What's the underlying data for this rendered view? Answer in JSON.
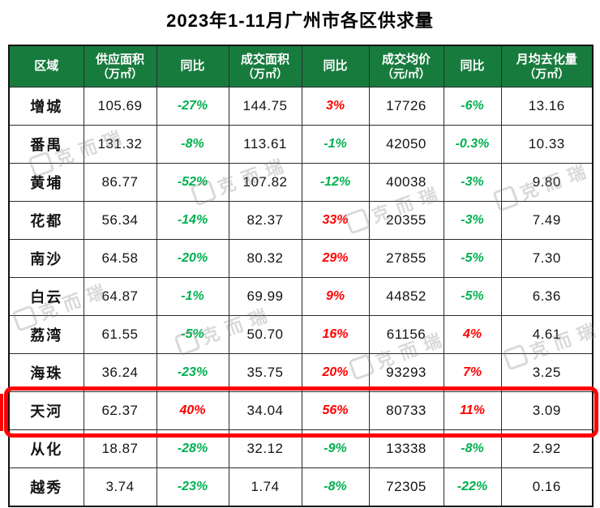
{
  "title": "2023年1-11月广州市各区供求量",
  "colors": {
    "header_bg": "#187B3E",
    "up_red": "#FF0000",
    "down_green": "#00B050",
    "highlight_border": "#FF0000",
    "grid_line": "#2B2B2B"
  },
  "watermark": {
    "text": "克而瑞"
  },
  "chart_data": {
    "type": "table",
    "title": "2023年1-11月广州市各区供求量",
    "columns": [
      {
        "label": "区域",
        "unit": ""
      },
      {
        "label": "供应面积",
        "unit": "（万㎡）"
      },
      {
        "label": "同比",
        "unit": ""
      },
      {
        "label": "成交面积",
        "unit": "（万㎡）"
      },
      {
        "label": "同比",
        "unit": ""
      },
      {
        "label": "成交均价",
        "unit": "（元/㎡）"
      },
      {
        "label": "同比",
        "unit": ""
      },
      {
        "label": "月均去化量",
        "unit": "（万㎡）"
      }
    ],
    "yoy_color_rule": "negative values green, positive values red",
    "highlight_row": "天河",
    "rows": [
      {
        "region": "增城",
        "values": [
          "105.69",
          "-27%",
          "144.75",
          "3%",
          "17726",
          "-6%",
          "13.16"
        ],
        "highlight": false
      },
      {
        "region": "番禺",
        "values": [
          "131.32",
          "-8%",
          "113.61",
          "-1%",
          "42050",
          "-0.3%",
          "10.33"
        ],
        "highlight": false
      },
      {
        "region": "黄埔",
        "values": [
          "86.77",
          "-52%",
          "107.82",
          "-12%",
          "40038",
          "-3%",
          "9.80"
        ],
        "highlight": false
      },
      {
        "region": "花都",
        "values": [
          "56.34",
          "-14%",
          "82.37",
          "33%",
          "20355",
          "-3%",
          "7.49"
        ],
        "highlight": false
      },
      {
        "region": "南沙",
        "values": [
          "64.58",
          "-20%",
          "80.32",
          "29%",
          "27855",
          "-5%",
          "7.30"
        ],
        "highlight": false
      },
      {
        "region": "白云",
        "values": [
          "64.87",
          "-1%",
          "69.99",
          "9%",
          "44852",
          "-5%",
          "6.36"
        ],
        "highlight": false
      },
      {
        "region": "荔湾",
        "values": [
          "61.55",
          "-5%",
          "50.70",
          "16%",
          "61156",
          "4%",
          "4.61"
        ],
        "highlight": false
      },
      {
        "region": "海珠",
        "values": [
          "36.24",
          "-23%",
          "35.75",
          "20%",
          "93293",
          "7%",
          "3.25"
        ],
        "highlight": false
      },
      {
        "region": "天河",
        "values": [
          "62.37",
          "40%",
          "34.04",
          "56%",
          "80733",
          "11%",
          "3.09"
        ],
        "highlight": true
      },
      {
        "region": "从化",
        "values": [
          "18.87",
          "-28%",
          "32.12",
          "-9%",
          "13338",
          "-8%",
          "2.92"
        ],
        "highlight": false
      },
      {
        "region": "越秀",
        "values": [
          "3.74",
          "-23%",
          "1.74",
          "-8%",
          "72305",
          "-22%",
          "0.16"
        ],
        "highlight": false
      }
    ]
  }
}
